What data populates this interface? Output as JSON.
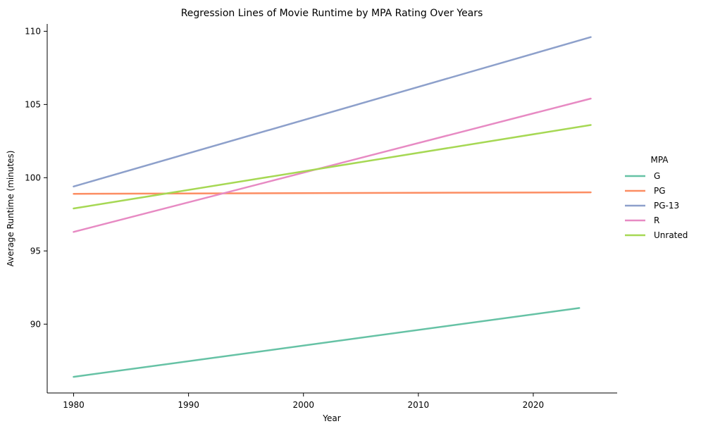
{
  "chart_data": {
    "type": "line",
    "title": "Regression Lines of Movie Runtime by MPA Rating Over Years",
    "xlabel": "Year",
    "ylabel": "Average Runtime (minutes)",
    "xlim": [
      1977.7,
      2027.3
    ],
    "ylim": [
      85.3,
      110.5
    ],
    "xticks": [
      1980,
      1990,
      2000,
      2010,
      2020
    ],
    "yticks": [
      90,
      95,
      100,
      105,
      110
    ],
    "grid": false,
    "legend_title": "MPA",
    "legend_placement": "right",
    "series": [
      {
        "name": "G",
        "color": "#66c2a5",
        "x": [
          1980,
          2024
        ],
        "y": [
          86.4,
          91.1
        ]
      },
      {
        "name": "PG",
        "color": "#fc8d62",
        "x": [
          1980,
          2025
        ],
        "y": [
          98.9,
          99.0
        ]
      },
      {
        "name": "PG-13",
        "color": "#8da0cb",
        "x": [
          1980,
          2025
        ],
        "y": [
          99.4,
          109.6
        ]
      },
      {
        "name": "R",
        "color": "#e78ac3",
        "x": [
          1980,
          2025
        ],
        "y": [
          96.3,
          105.4
        ]
      },
      {
        "name": "Unrated",
        "color": "#a6d854",
        "x": [
          1980,
          2025
        ],
        "y": [
          97.9,
          103.6
        ]
      }
    ]
  }
}
